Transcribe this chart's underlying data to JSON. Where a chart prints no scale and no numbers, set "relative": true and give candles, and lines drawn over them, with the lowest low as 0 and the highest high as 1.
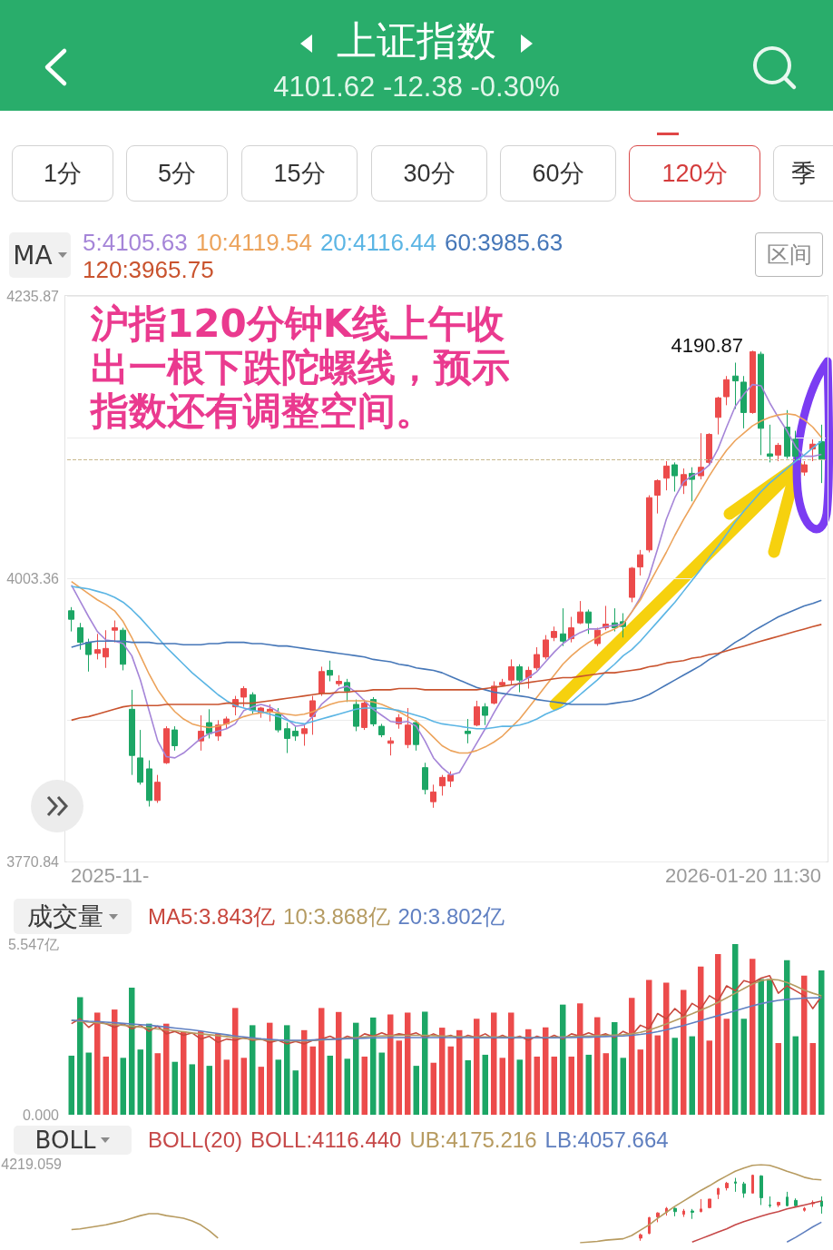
{
  "chart_data": [
    {
      "type": "candlestick",
      "title": "上证指数",
      "subtitle": "4101.62 -12.38 -0.30%",
      "legend_title": "MA",
      "legend": "top left",
      "categories": [
        null,
        null,
        null,
        null,
        null,
        null,
        null,
        null,
        null,
        null,
        null,
        null,
        null,
        null,
        null,
        null,
        null,
        null,
        null,
        null,
        null,
        null,
        null,
        null,
        null,
        null,
        null,
        null,
        null,
        null,
        null,
        null,
        null,
        null,
        null,
        null,
        null,
        null,
        null,
        null,
        null,
        null,
        null,
        null,
        null,
        null,
        null,
        null,
        null,
        null,
        null,
        null,
        null,
        null,
        null,
        null,
        null,
        null,
        null,
        null,
        null,
        null,
        null,
        null,
        null,
        null,
        null,
        null,
        null,
        null,
        null,
        null,
        null,
        null,
        null,
        null,
        null,
        null,
        null,
        null,
        null,
        null,
        null,
        null,
        null,
        null,
        null,
        null
      ],
      "ohlc": [
        [
          3977,
          3980,
          3960,
          3970
        ],
        [
          3963,
          3967,
          3945,
          3951
        ],
        [
          3951,
          3954,
          3927,
          3941
        ],
        [
          3942,
          3958,
          3937,
          3945
        ],
        [
          3939,
          3961,
          3930,
          3946
        ],
        [
          3961,
          3969,
          3951,
          3963
        ],
        [
          3961,
          3963,
          3928,
          3933
        ],
        [
          3896,
          3912,
          3842,
          3858
        ],
        [
          3856,
          3879,
          3834,
          3836
        ],
        [
          3847,
          3854,
          3816,
          3821
        ],
        [
          3821,
          3842,
          3819,
          3836
        ],
        [
          3852,
          3882,
          3851,
          3880
        ],
        [
          3879,
          3882,
          3862,
          3866
        ],
        null,
        null,
        [
          3870,
          3891,
          3862,
          3878
        ],
        [
          3885,
          3896,
          3872,
          3876
        ],
        [
          3874,
          3887,
          3870,
          3883
        ],
        [
          3884,
          3890,
          3880,
          3888
        ],
        [
          3898,
          3907,
          3891,
          3904
        ],
        [
          3906,
          3915,
          3898,
          3913
        ],
        [
          3908,
          3910,
          3892,
          3895
        ],
        [
          3893,
          3898,
          3889,
          3897
        ],
        [
          3894,
          3900,
          3886,
          3896
        ],
        [
          3892,
          3897,
          3877,
          3879
        ],
        [
          3880,
          3885,
          3860,
          3872
        ],
        [
          3878,
          3882,
          3870,
          3874
        ],
        [
          3876,
          3884,
          3866,
          3880
        ],
        [
          3890,
          3907,
          3875,
          3903
        ],
        [
          3909,
          3931,
          3907,
          3927
        ],
        [
          3928,
          3936,
          3919,
          3924
        ],
        [
          3917,
          3924,
          3915,
          3919
        ],
        [
          3918,
          3921,
          3902,
          3911
        ],
        [
          3900,
          3904,
          3878,
          3882
        ],
        [
          3881,
          3904,
          3879,
          3901
        ],
        [
          3904,
          3906,
          3882,
          3884
        ],
        [
          3882,
          3884,
          3873,
          3875
        ],
        [
          3868,
          3873,
          3858,
          3870
        ],
        [
          3884,
          3892,
          3880,
          3889
        ],
        [
          3867,
          3897,
          3864,
          3883
        ],
        [
          3885,
          3887,
          3862,
          3867
        ],
        [
          3848,
          3852,
          3826,
          3830
        ],
        [
          3820,
          3834,
          3815,
          3828
        ],
        [
          3833,
          3842,
          3825,
          3840
        ],
        [
          3837,
          3845,
          3832,
          3842
        ],
        null,
        [
          3878,
          3888,
          3868,
          3876
        ],
        [
          3883,
          3903,
          3882,
          3898
        ],
        [
          3898,
          3901,
          3883,
          3891
        ],
        [
          3901,
          3919,
          3900,
          3915
        ],
        [
          3916,
          3921,
          3915,
          3918
        ],
        [
          3920,
          3937,
          3916,
          3931
        ],
        [
          3931,
          3933,
          3910,
          3920
        ],
        [
          3922,
          3931,
          3913,
          3928
        ],
        [
          3930,
          3947,
          3928,
          3941
        ],
        [
          3939,
          3957,
          3937,
          3953
        ],
        [
          3955,
          3964,
          3952,
          3960
        ],
        [
          3958,
          3979,
          3948,
          3952
        ],
        [
          3954,
          3972,
          3951,
          3963
        ],
        [
          3967,
          3985,
          3966,
          3976
        ],
        [
          3976,
          3978,
          3958,
          3967
        ],
        [
          3950,
          3963,
          3948,
          3961
        ],
        [
          3963,
          3981,
          3961,
          3966
        ],
        [
          3967,
          3979,
          3960,
          3963
        ],
        [
          3968,
          3975,
          3955,
          3964
        ],
        [
          3988,
          4013,
          3984,
          4012
        ],
        [
          4013,
          4027,
          4006,
          4023
        ],
        [
          4027,
          4072,
          4025,
          4070
        ],
        [
          4072,
          4085,
          4057,
          4084
        ],
        [
          4086,
          4100,
          4076,
          4096
        ],
        [
          4097,
          4099,
          4075,
          4088
        ],
        [
          4080,
          4094,
          4073,
          4089
        ],
        [
          4090,
          4095,
          4067,
          4085
        ],
        [
          4088,
          4123,
          4085,
          4095
        ],
        [
          4099,
          4123,
          4097,
          4122
        ],
        [
          4136,
          4153,
          4122,
          4152
        ],
        [
          4153,
          4170,
          4146,
          4167
        ],
        [
          4170,
          4181,
          4143,
          4166
        ],
        [
          4165,
          4170,
          4127,
          4140
        ],
        [
          4140,
          4190.87,
          4139,
          4190
        ],
        [
          4188,
          4190,
          4105,
          4127
        ],
        [
          4106,
          4130,
          4099,
          4104
        ],
        [
          4105,
          4115,
          4100,
          4113
        ],
        [
          4128,
          4142,
          4102,
          4104
        ],
        [
          4118,
          4125,
          4100,
          4104
        ],
        [
          4091,
          4100,
          4088,
          4097
        ],
        [
          4110,
          4118,
          4100,
          4114
        ],
        [
          4116,
          4130,
          4082,
          4101.62
        ]
      ],
      "series": [
        {
          "name": "5:4105.63",
          "type": "line",
          "color": "#a585d8",
          "values": [
            3998,
            3985,
            3972,
            3960,
            3953,
            3952,
            3950,
            3940,
            3920,
            3895,
            3870,
            3857,
            3856,
            3860,
            3866,
            3872,
            3876,
            3878,
            3880,
            3884,
            3895,
            3898,
            3900,
            3898,
            3894,
            3888,
            3882,
            3883,
            3890,
            3900,
            3906,
            3913,
            3915,
            3910,
            3903,
            3896,
            3891,
            3886,
            3885,
            3886,
            3882,
            3870,
            3856,
            3848,
            3842,
            3844,
            3856,
            3868,
            3880,
            3893,
            3905,
            3913,
            3918,
            3922,
            3927,
            3935,
            3943,
            3950,
            3955,
            3959,
            3962,
            3962,
            3964,
            3965,
            3966,
            3976,
            3988,
            4005,
            4028,
            4052,
            4070,
            4083,
            4088,
            4091,
            4097,
            4110,
            4128,
            4145,
            4155,
            4163,
            4162,
            4148,
            4136,
            4125,
            4112,
            4104,
            4104,
            4105.63
          ]
        },
        {
          "name": "10:4119.54",
          "type": "line",
          "color": "#eca35b",
          "values": [
            4001,
            3996,
            3991,
            3986,
            3982,
            3977,
            3968,
            3955,
            3940,
            3925,
            3912,
            3902,
            3894,
            3888,
            3884,
            3882,
            3881,
            3882,
            3884,
            3887,
            3890,
            3892,
            3893,
            3894,
            3893,
            3892,
            3891,
            3892,
            3894,
            3897,
            3900,
            3902,
            3903,
            3903,
            3903,
            3902,
            3900,
            3897,
            3894,
            3890,
            3886,
            3880,
            3873,
            3866,
            3862,
            3860,
            3860,
            3862,
            3865,
            3869,
            3874,
            3881,
            3888,
            3897,
            3906,
            3915,
            3924,
            3933,
            3940,
            3946,
            3951,
            3955,
            3959,
            3962,
            3966,
            3976,
            3986,
            3999,
            4012,
            4025,
            4039,
            4052,
            4064,
            4076,
            4088,
            4099,
            4109,
            4117,
            4123,
            4129,
            4133,
            4136,
            4138,
            4139,
            4138,
            4134,
            4128,
            4119.54
          ]
        },
        {
          "name": "20:4116.44",
          "type": "line",
          "color": "#5bb5e4",
          "values": [
            3997,
            3996,
            3995,
            3993,
            3991,
            3988,
            3984,
            3978,
            3971,
            3963,
            3955,
            3947,
            3940,
            3933,
            3926,
            3920,
            3914,
            3908,
            3903,
            3899,
            3897,
            3895,
            3894,
            3892,
            3890,
            3887,
            3885,
            3884,
            3886,
            3888,
            3890,
            3892,
            3894,
            3896,
            3897,
            3897,
            3897,
            3896,
            3895,
            3893,
            3891,
            3889,
            3886,
            3884,
            3883,
            3882,
            3881,
            3880,
            3880,
            3881,
            3882,
            3882,
            3883,
            3885,
            3888,
            3892,
            3895,
            3898,
            3902,
            3908,
            3914,
            3920,
            3927,
            3933,
            3940,
            3945,
            3952,
            3960,
            3968,
            3976,
            3984,
            3993,
            4002,
            4011,
            4021,
            4030,
            4040,
            4050,
            4059,
            4067,
            4075,
            4082,
            4088,
            4094,
            4100,
            4105,
            4111,
            4116.44
          ]
        },
        {
          "name": "60:3985.63",
          "type": "line",
          "color": "#4677b8",
          "values": [
            3947,
            3949,
            3951,
            3952,
            3952,
            3952,
            3952,
            3951,
            3951,
            3951,
            3950,
            3950,
            3950,
            3949,
            3949,
            3949,
            3950,
            3950,
            3951,
            3951,
            3951,
            3950,
            3950,
            3949,
            3948,
            3948,
            3947,
            3946,
            3945,
            3944,
            3943,
            3942,
            3941,
            3940,
            3939,
            3937,
            3936,
            3935,
            3933,
            3932,
            3930,
            3929,
            3928,
            3926,
            3923,
            3920,
            3917,
            3914,
            3912,
            3910,
            3909,
            3908,
            3907,
            3906,
            3904,
            3903,
            3902,
            3901,
            3900,
            3900,
            3900,
            3900,
            3900,
            3901,
            3902,
            3903,
            3905,
            3908,
            3912,
            3916,
            3920,
            3924,
            3928,
            3932,
            3937,
            3941,
            3946,
            3951,
            3955,
            3960,
            3964,
            3968,
            3972,
            3975,
            3978,
            3981,
            3983,
            3985.63
          ]
        },
        {
          "name": "120:3965.75",
          "type": "line",
          "color": "#c9532e",
          "values": [
            3887,
            3889,
            3890,
            3892,
            3894,
            3896,
            3898,
            3899,
            3899,
            3899,
            3899,
            3900,
            3900,
            3900,
            3900,
            3900,
            3900,
            3900,
            3901,
            3901,
            3901,
            3901,
            3902,
            3903,
            3904,
            3905,
            3906,
            3907,
            3908,
            3909,
            3909,
            3910,
            3910,
            3911,
            3911,
            3912,
            3912,
            3912,
            3913,
            3913,
            3913,
            3912,
            3912,
            3912,
            3912,
            3912,
            3912,
            3912,
            3913,
            3914,
            3915,
            3916,
            3917,
            3918,
            3919,
            3920,
            3921,
            3922,
            3922,
            3923,
            3924,
            3925,
            3926,
            3926,
            3927,
            3928,
            3929,
            3931,
            3932,
            3934,
            3935,
            3936,
            3938,
            3939,
            3941,
            3942,
            3944,
            3946,
            3948,
            3950,
            3952,
            3954,
            3956,
            3958,
            3960,
            3962,
            3964,
            3965.75
          ]
        }
      ],
      "ylim": [
        3770.84,
        4235.87
      ],
      "yticks": [
        3770.84,
        {
          "value": 3887.1,
          "label": null
        },
        4003.36,
        {
          "value": 4119.61,
          "label": null
        },
        4235.87
      ],
      "grid": "y",
      "ref_lines": [
        {
          "axis": "y",
          "value": 4101.62,
          "line_style": "dashed",
          "color": "#c9b98e"
        }
      ],
      "annotations": [
        "1分",
        "5分",
        "15分",
        "30分",
        "60分",
        "120分",
        "季",
        "区间",
        "4190.87",
        "沪指120分钟K线上午收出一根下跌陀螺线，预示指数还有调整空间。",
        "2025-11-",
        "2026-01-20 11:30"
      ]
    },
    {
      "type": "bar",
      "legend_title": "成交量",
      "legend": "top left",
      "categories": [
        null,
        null,
        null,
        null,
        null,
        null,
        null,
        null,
        null,
        null,
        null,
        null,
        null,
        null,
        null,
        null,
        null,
        null,
        null,
        null,
        null,
        null,
        null,
        null,
        null,
        null,
        null,
        null,
        null,
        null,
        null,
        null,
        null,
        null,
        null,
        null,
        null,
        null,
        null,
        null,
        null,
        null,
        null,
        null,
        null,
        null,
        null,
        null,
        null,
        null,
        null,
        null,
        null,
        null,
        null,
        null,
        null,
        null,
        null,
        null,
        null,
        null,
        null,
        null,
        null,
        null,
        null,
        null,
        null,
        null,
        null,
        null,
        null,
        null,
        null,
        null,
        null,
        null,
        null,
        null,
        null,
        null,
        null,
        null,
        null,
        null,
        null,
        null
      ],
      "values": [
        1.92,
        3.82,
        2.02,
        3.32,
        1.89,
        3.42,
        1.85,
        4.13,
        2.12,
        2.96,
        2.0,
        2.96,
        1.72,
        2.71,
        1.64,
        2.71,
        1.59,
        2.63,
        1.79,
        3.47,
        1.85,
        2.91,
        1.56,
        2.99,
        1.79,
        2.91,
        1.44,
        2.75,
        2.22,
        3.47,
        1.92,
        3.34,
        1.82,
        2.99,
        1.89,
        3.16,
        2.02,
        3.26,
        2.41,
        3.32,
        1.59,
        3.35,
        1.69,
        2.83,
        2.22,
        2.75,
        1.77,
        3.12,
        1.95,
        3.32,
        1.85,
        3.32,
        1.79,
        2.78,
        1.89,
        2.84,
        1.89,
        3.58,
        1.89,
        3.62,
        1.95,
        3.17,
        2.0,
        3.01,
        1.85,
        3.8,
        2.12,
        4.38,
        2.58,
        4.29,
        2.5,
        4.06,
        2.55,
        4.82,
        2.41,
        5.22,
        3.12,
        5.547,
        3.12,
        5.07,
        4.41,
        4.41,
        2.33,
        5.02,
        2.55,
        4.52,
        2.33,
        4.69
      ],
      "colors": [
        "#1ca665",
        "#1ca665",
        "#1ca665",
        "#ec4b4b",
        "#ec4b4b",
        "#ec4b4b",
        "#1ca665",
        "#1ca665",
        "#1ca665",
        "#1ca665",
        "#ec4b4b",
        "#ec4b4b",
        "#1ca665",
        "#ec4b4b",
        "#1ca665",
        "#ec4b4b",
        "#1ca665",
        "#ec4b4b",
        "#ec4b4b",
        "#ec4b4b",
        "#ec4b4b",
        "#1ca665",
        "#ec4b4b",
        "#ec4b4b",
        "#1ca665",
        "#1ca665",
        "#1ca665",
        "#ec4b4b",
        "#ec4b4b",
        "#ec4b4b",
        "#1ca665",
        "#ec4b4b",
        "#1ca665",
        "#1ca665",
        "#ec4b4b",
        "#1ca665",
        "#1ca665",
        "#ec4b4b",
        "#ec4b4b",
        "#ec4b4b",
        "#1ca665",
        "#1ca665",
        "#ec4b4b",
        "#ec4b4b",
        "#ec4b4b",
        "#ec4b4b",
        "#1ca665",
        "#ec4b4b",
        "#1ca665",
        "#ec4b4b",
        "#ec4b4b",
        "#ec4b4b",
        "#1ca665",
        "#ec4b4b",
        "#ec4b4b",
        "#ec4b4b",
        "#ec4b4b",
        "#1ca665",
        "#ec4b4b",
        "#ec4b4b",
        "#1ca665",
        "#ec4b4b",
        "#ec4b4b",
        "#1ca665",
        "#1ca665",
        "#ec4b4b",
        "#ec4b4b",
        "#ec4b4b",
        "#ec4b4b",
        "#ec4b4b",
        "#1ca665",
        "#ec4b4b",
        "#1ca665",
        "#ec4b4b",
        "#ec4b4b",
        "#ec4b4b",
        "#ec4b4b",
        "#1ca665",
        "#1ca665",
        "#ec4b4b",
        "#1ca665",
        "#1ca665",
        "#ec4b4b",
        "#1ca665",
        "#1ca665",
        "#ec4b4b",
        "#ec4b4b",
        "#1ca665"
      ],
      "series": [
        {
          "name": "MA5:3.843亿",
          "type": "line",
          "color": "#c8473d",
          "values": [
            2.96,
            3.12,
            2.84,
            3.04,
            2.96,
            2.84,
            2.96,
            2.79,
            2.91,
            2.71,
            2.88,
            2.63,
            2.71,
            2.58,
            2.66,
            2.46,
            2.55,
            2.35,
            2.46,
            2.42,
            2.51,
            2.42,
            2.46,
            2.35,
            2.42,
            2.3,
            2.38,
            2.3,
            2.42,
            2.46,
            2.55,
            2.42,
            2.55,
            2.46,
            2.63,
            2.55,
            2.66,
            2.55,
            2.63,
            2.58,
            2.66,
            2.51,
            2.63,
            2.51,
            2.58,
            2.46,
            2.58,
            2.51,
            2.63,
            2.46,
            2.58,
            2.46,
            2.55,
            2.42,
            2.55,
            2.46,
            2.58,
            2.46,
            2.63,
            2.55,
            2.66,
            2.55,
            2.63,
            2.51,
            2.71,
            2.58,
            2.91,
            2.79,
            3.29,
            3.12,
            3.45,
            3.21,
            3.62,
            3.45,
            3.87,
            3.7,
            4.19,
            4.03,
            4.36,
            4.28,
            4.44,
            4.52,
            3.95,
            4.19,
            4.03,
            3.87,
            3.45,
            3.843
          ]
        },
        {
          "name": "10:3.868亿",
          "type": "line",
          "color": "#b59b62",
          "values": [
            3.07,
            3.04,
            3.01,
            2.99,
            2.96,
            2.93,
            2.91,
            2.88,
            2.85,
            2.82,
            2.79,
            2.76,
            2.73,
            2.7,
            2.66,
            2.63,
            2.6,
            2.57,
            2.54,
            2.51,
            2.48,
            2.46,
            2.44,
            2.42,
            2.41,
            2.4,
            2.4,
            2.4,
            2.41,
            2.43,
            2.45,
            2.47,
            2.49,
            2.51,
            2.53,
            2.55,
            2.56,
            2.57,
            2.58,
            2.58,
            2.58,
            2.58,
            2.57,
            2.56,
            2.55,
            2.54,
            2.53,
            2.53,
            2.53,
            2.53,
            2.53,
            2.52,
            2.52,
            2.51,
            2.51,
            2.51,
            2.52,
            2.53,
            2.54,
            2.55,
            2.56,
            2.57,
            2.58,
            2.59,
            2.6,
            2.63,
            2.68,
            2.75,
            2.85,
            2.95,
            3.06,
            3.17,
            3.28,
            3.4,
            3.52,
            3.65,
            3.8,
            3.95,
            4.1,
            4.25,
            4.36,
            4.4,
            4.38,
            4.3,
            4.18,
            4.05,
            3.95,
            3.868
          ]
        },
        {
          "name": "20:3.802亿",
          "type": "line",
          "color": "#6080c2",
          "values": [
            3.07,
            3.06,
            3.04,
            3.03,
            3.01,
            2.99,
            2.97,
            2.95,
            2.93,
            2.91,
            2.88,
            2.85,
            2.82,
            2.79,
            2.76,
            2.72,
            2.68,
            2.64,
            2.6,
            2.56,
            2.53,
            2.5,
            2.47,
            2.45,
            2.43,
            2.42,
            2.42,
            2.42,
            2.43,
            2.44,
            2.45,
            2.46,
            2.47,
            2.48,
            2.49,
            2.5,
            2.5,
            2.51,
            2.51,
            2.51,
            2.51,
            2.51,
            2.51,
            2.51,
            2.51,
            2.51,
            2.51,
            2.5,
            2.5,
            2.5,
            2.5,
            2.5,
            2.5,
            2.5,
            2.5,
            2.5,
            2.5,
            2.51,
            2.51,
            2.52,
            2.52,
            2.53,
            2.54,
            2.55,
            2.56,
            2.58,
            2.61,
            2.65,
            2.7,
            2.76,
            2.83,
            2.9,
            2.98,
            3.06,
            3.14,
            3.22,
            3.3,
            3.38,
            3.46,
            3.54,
            3.61,
            3.67,
            3.72,
            3.75,
            3.77,
            3.79,
            3.8,
            3.802
          ]
        }
      ],
      "ylim": [
        0,
        5.547
      ],
      "yticks": [
        {
          "value": 0,
          "label": "0.000"
        },
        {
          "value": 5.547,
          "label": "5.547亿"
        }
      ]
    },
    {
      "type": "candlestick",
      "subtitle": "BOLL(20)",
      "legend_title": "BOLL",
      "legend": "top left",
      "relative": true,
      "categories": [
        null,
        null,
        null,
        null,
        null,
        null,
        null,
        null,
        null,
        null,
        null,
        null,
        null,
        null,
        null,
        null,
        null,
        null,
        null,
        null,
        null,
        null,
        null,
        null,
        null,
        null,
        null,
        null,
        null,
        null,
        null,
        null,
        null,
        null,
        null,
        null,
        null,
        null,
        null,
        null,
        null,
        null,
        null,
        null,
        null,
        null,
        null,
        null,
        null,
        null,
        null,
        null,
        null,
        null,
        null,
        null,
        null,
        null,
        null,
        null,
        null,
        null,
        null,
        null,
        null,
        null,
        null,
        null,
        null,
        null,
        null,
        null,
        null,
        null,
        null,
        null,
        null,
        null,
        null,
        null,
        null,
        null,
        null,
        null,
        null,
        null,
        null,
        null
      ],
      "ohlc": [
        null,
        null,
        null,
        null,
        null,
        null,
        null,
        null,
        null,
        null,
        null,
        null,
        null,
        null,
        null,
        null,
        null,
        null,
        null,
        null,
        null,
        null,
        null,
        null,
        null,
        null,
        null,
        null,
        null,
        null,
        null,
        null,
        null,
        null,
        null,
        null,
        null,
        null,
        null,
        null,
        null,
        null,
        null,
        null,
        null,
        null,
        null,
        null,
        null,
        null,
        null,
        null,
        null,
        null,
        null,
        null,
        null,
        null,
        null,
        null,
        null,
        null,
        null,
        null,
        null,
        null,
        [
          0.04,
          0.11,
          0,
          0.09
        ],
        [
          0.11,
          0.36,
          0.1,
          0.35
        ],
        [
          0.36,
          0.43,
          0.28,
          0.42
        ],
        [
          0.43,
          0.51,
          0.38,
          0.49
        ],
        [
          0.49,
          0.5,
          0.37,
          0.44
        ],
        [
          0.4,
          0.48,
          0.36,
          0.45
        ],
        [
          0.45,
          0.48,
          0.33,
          0.43
        ],
        [
          0.44,
          0.63,
          0.43,
          0.48
        ],
        [
          0.5,
          0.63,
          0.49,
          0.63
        ],
        [
          0.7,
          0.8,
          0.63,
          0.79
        ],
        [
          0.8,
          0.89,
          0.76,
          0.87
        ],
        [
          0.89,
          0.95,
          0.74,
          0.87
        ],
        [
          0.86,
          0.89,
          0.65,
          0.72
        ],
        [
          0.72,
          1,
          0.72,
          0.99
        ],
        [
          0.98,
          0.99,
          0.54,
          0.65
        ],
        [
          0.54,
          0.67,
          0.5,
          0.53
        ],
        [
          0.54,
          0.59,
          0.51,
          0.58
        ],
        [
          0.66,
          0.74,
          0.52,
          0.53
        ],
        [
          0.61,
          0.64,
          0.51,
          0.53
        ],
        [
          0.46,
          0.51,
          0.44,
          0.49
        ],
        [
          0.56,
          0.61,
          0.51,
          0.58
        ],
        [
          0.6,
          0.67,
          0.41,
          0.52
        ]
      ],
      "series": [
        {
          "name": "BOLL:4116.440",
          "type": "line",
          "color": "#c64848",
          "values": [
            null,
            null,
            null,
            null,
            null,
            null,
            null,
            null,
            null,
            null,
            null,
            null,
            null,
            null,
            null,
            null,
            null,
            null,
            null,
            null,
            null,
            null,
            null,
            null,
            null,
            null,
            null,
            null,
            null,
            null,
            null,
            null,
            null,
            null,
            null,
            null,
            null,
            null,
            null,
            null,
            null,
            null,
            null,
            null,
            null,
            null,
            null,
            null,
            null,
            null,
            null,
            null,
            null,
            null,
            null,
            null,
            null,
            null,
            null,
            null,
            null,
            null,
            null,
            null,
            null,
            null,
            null,
            null,
            null,
            null,
            null,
            null,
            -0.02,
            0.03,
            0.08,
            0.13,
            0.18,
            0.24,
            0.29,
            0.33,
            0.37,
            0.41,
            0.44,
            0.48,
            0.51,
            0.54,
            0.57,
            0.6
          ]
        },
        {
          "name": "UB:4175.216",
          "type": "line",
          "color": "#b79b60",
          "values": [
            0.17,
            0.18,
            0.2,
            0.22,
            0.24,
            0.27,
            0.3,
            0.34,
            0.38,
            0.41,
            0.41,
            0.38,
            0.36,
            0.34,
            0.3,
            0.24,
            0.15,
            0.04,
            null,
            null,
            null,
            null,
            null,
            null,
            null,
            null,
            null,
            null,
            null,
            null,
            null,
            null,
            null,
            null,
            null,
            null,
            null,
            null,
            null,
            null,
            null,
            null,
            null,
            null,
            null,
            null,
            null,
            null,
            null,
            null,
            null,
            null,
            null,
            null,
            null,
            null,
            null,
            null,
            null,
            -0.03,
            -0.02,
            -0.01,
            0.01,
            0.02,
            0.03,
            0.08,
            0.16,
            0.24,
            0.34,
            0.43,
            0.52,
            0.6,
            0.68,
            0.76,
            0.83,
            0.91,
            0.98,
            1.05,
            1.1,
            1.14,
            1.15,
            1.14,
            1.1,
            1.05,
            1.01,
            0.96,
            0.93,
            0.92
          ]
        },
        {
          "name": "LB:4057.664",
          "type": "line",
          "color": "#5f7fbf",
          "values": [
            null,
            null,
            null,
            null,
            null,
            null,
            null,
            null,
            null,
            null,
            null,
            null,
            null,
            null,
            null,
            null,
            null,
            null,
            null,
            null,
            null,
            null,
            null,
            null,
            null,
            null,
            null,
            null,
            null,
            null,
            null,
            null,
            null,
            null,
            null,
            null,
            null,
            null,
            null,
            null,
            null,
            null,
            null,
            null,
            null,
            null,
            null,
            null,
            null,
            null,
            null,
            null,
            null,
            null,
            null,
            null,
            null,
            null,
            null,
            null,
            null,
            null,
            null,
            null,
            null,
            null,
            null,
            null,
            null,
            null,
            null,
            null,
            null,
            null,
            null,
            null,
            null,
            null,
            null,
            null,
            null,
            null,
            null,
            -0.02,
            0.05,
            0.13,
            0.21,
            0.28
          ]
        }
      ],
      "annotations": [
        "4219.059"
      ]
    }
  ]
}
